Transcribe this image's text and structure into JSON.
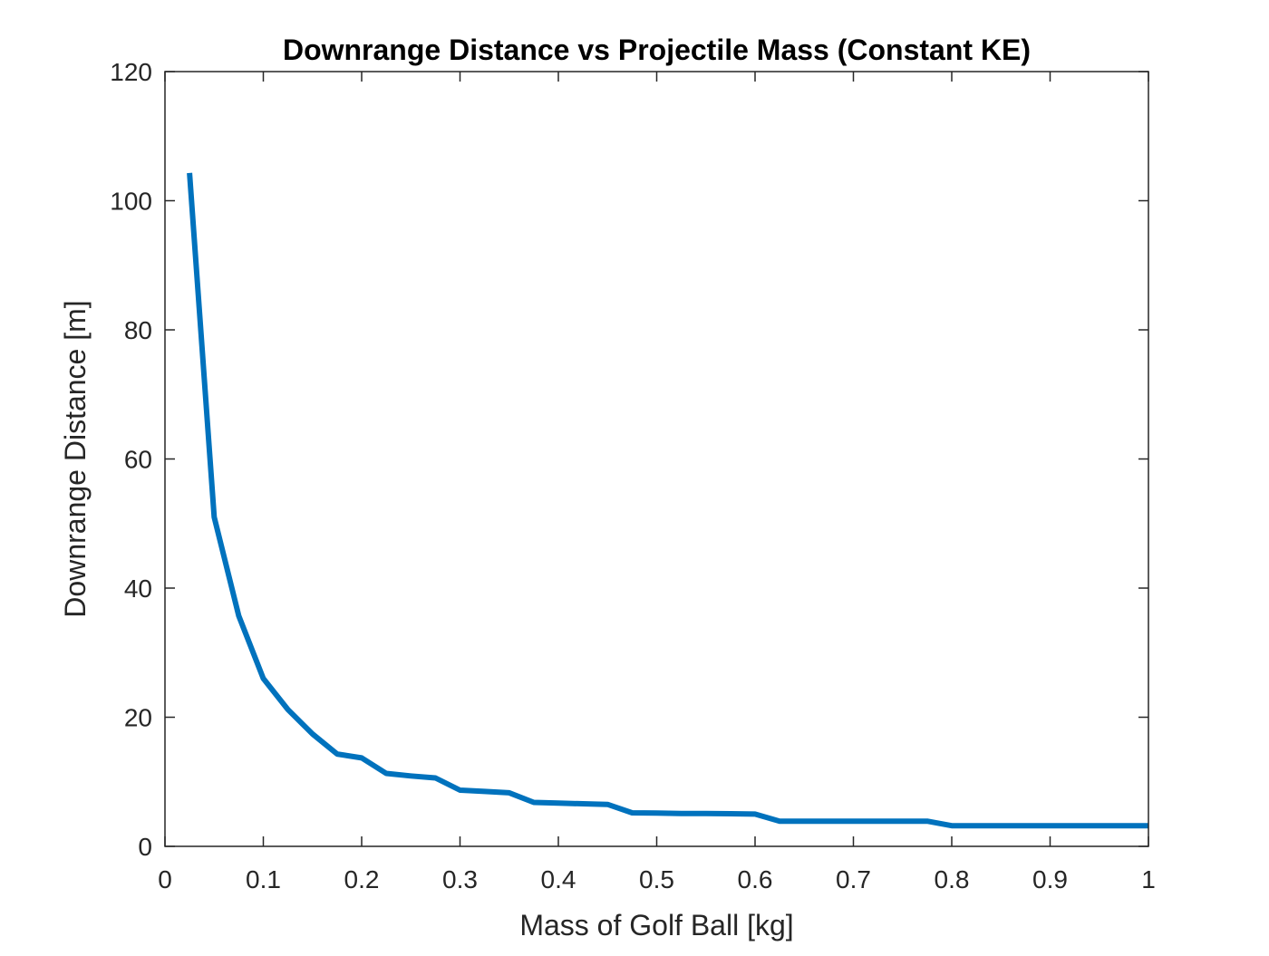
{
  "chart_data": {
    "type": "line",
    "title": "Downrange Distance vs Projectile Mass (Constant KE)",
    "xlabel": "Mass of Golf Ball [kg]",
    "ylabel": "Downrange Distance [m]",
    "xlim": [
      0,
      1
    ],
    "ylim": [
      0,
      120
    ],
    "xticks": [
      0,
      0.1,
      0.2,
      0.3,
      0.4,
      0.5,
      0.6,
      0.7,
      0.8,
      0.9,
      1
    ],
    "xtick_labels": [
      "0",
      "0.1",
      "0.2",
      "0.3",
      "0.4",
      "0.5",
      "0.6",
      "0.7",
      "0.8",
      "0.9",
      "1"
    ],
    "yticks": [
      0,
      20,
      40,
      60,
      80,
      100,
      120
    ],
    "ytick_labels": [
      "0",
      "20",
      "40",
      "60",
      "80",
      "100",
      "120"
    ],
    "grid": false,
    "box": true,
    "line_color": "#0072BD",
    "axis_color": "#262626",
    "series": [
      {
        "x": [
          0.025,
          0.05,
          0.075,
          0.1,
          0.125,
          0.15,
          0.175,
          0.2,
          0.225,
          0.25,
          0.275,
          0.3,
          0.325,
          0.35,
          0.375,
          0.4,
          0.425,
          0.45,
          0.475,
          0.5,
          0.525,
          0.55,
          0.575,
          0.6,
          0.625,
          0.65,
          0.675,
          0.7,
          0.725,
          0.75,
          0.775,
          0.8,
          0.825,
          0.85,
          0.875,
          0.9,
          0.925,
          0.95,
          0.975,
          1.0
        ],
        "y": [
          104.3,
          51.0,
          35.7,
          26.0,
          21.2,
          17.4,
          14.3,
          13.7,
          11.3,
          10.9,
          10.6,
          8.7,
          8.5,
          8.3,
          6.8,
          6.7,
          6.6,
          6.5,
          5.2,
          5.15,
          5.1,
          5.1,
          5.05,
          5.0,
          3.9,
          3.9,
          3.9,
          3.9,
          3.9,
          3.9,
          3.9,
          3.2,
          3.2,
          3.2,
          3.2,
          3.2,
          3.2,
          3.2,
          3.2,
          3.2
        ]
      }
    ]
  }
}
